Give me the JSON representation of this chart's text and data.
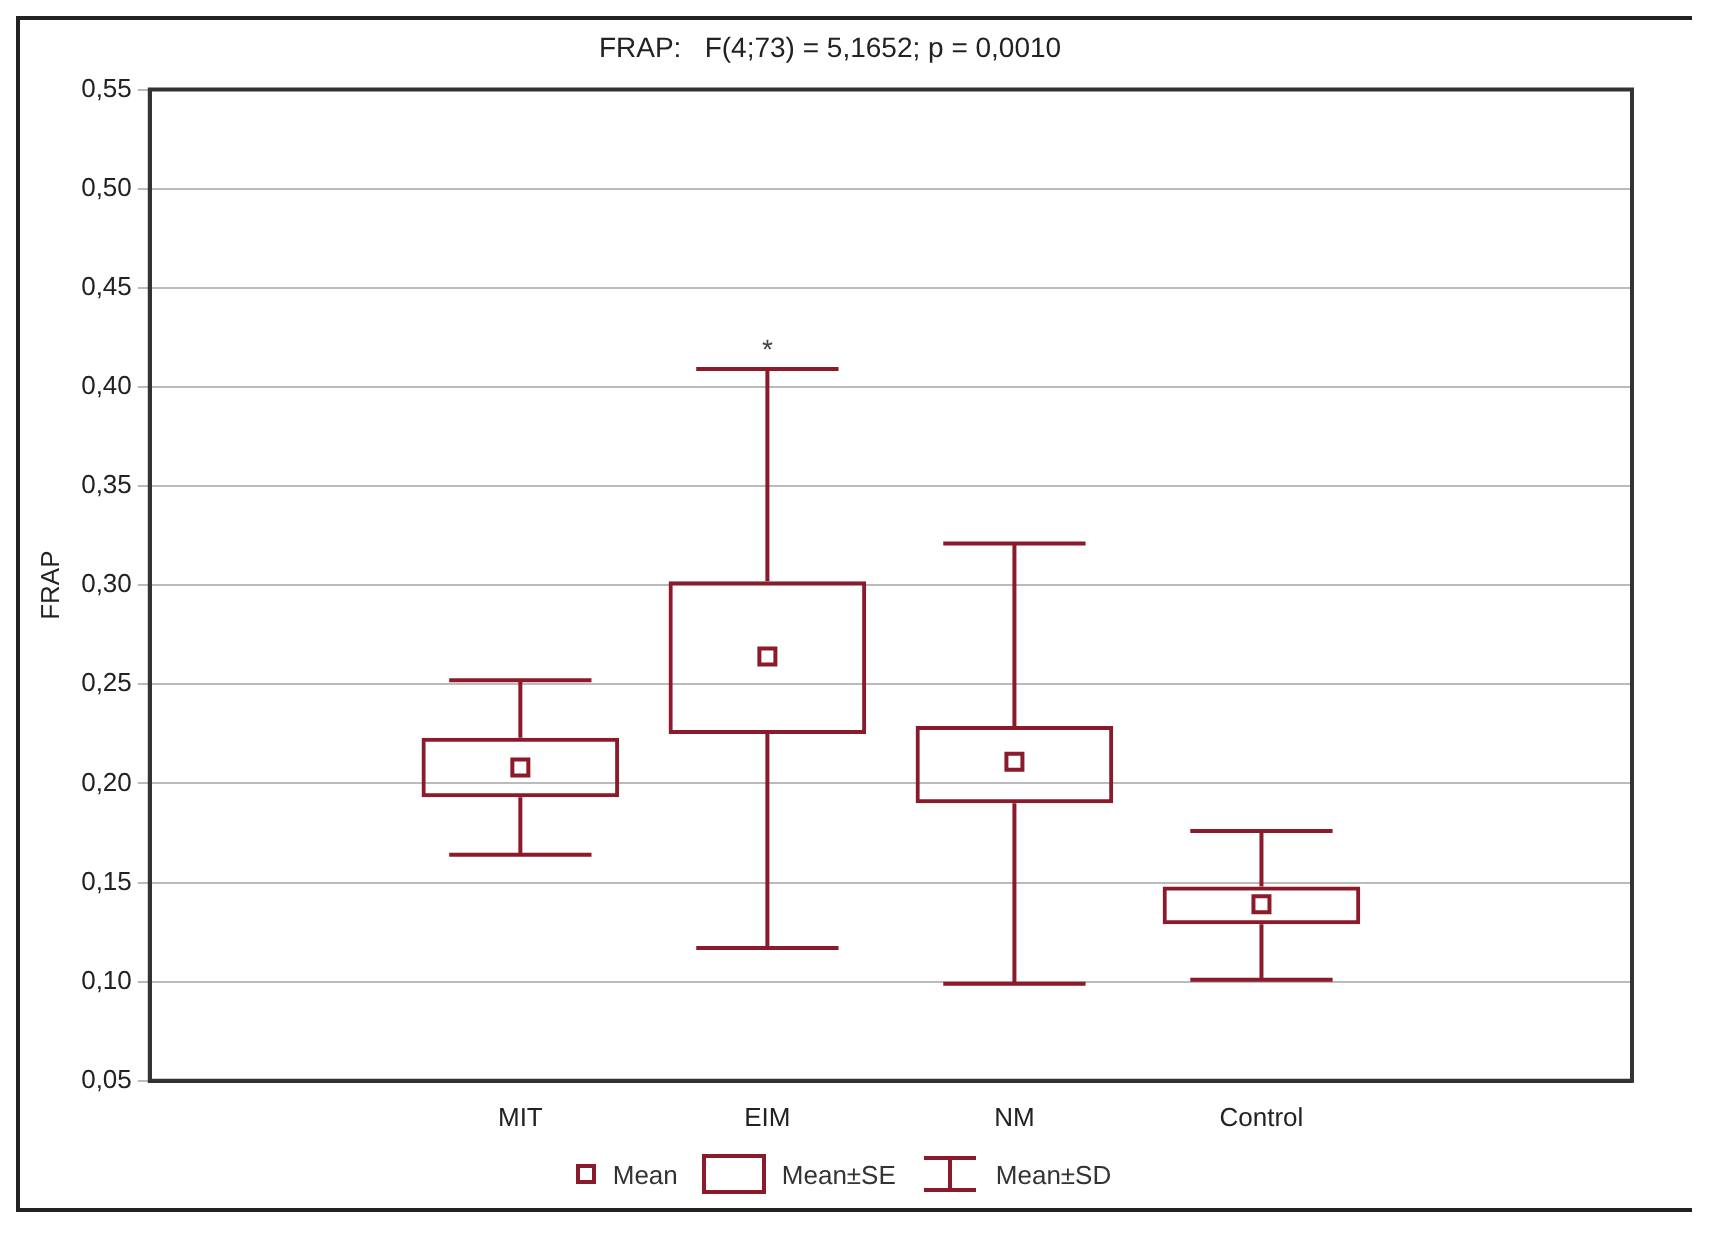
{
  "chart_data": {
    "type": "box",
    "title": "FRAP:   F(4;73) = 5,1652; p = 0,0010",
    "ylabel": "FRAP",
    "categories": [
      null,
      "MIT",
      "EIM",
      "NM",
      "Control",
      null
    ],
    "color": "#8b1a2b",
    "boxes": [
      null,
      {
        "low": 0.164,
        "q1": 0.193,
        "median": 0.208,
        "q3": 0.223,
        "high": 0.252
      },
      {
        "low": 0.117,
        "q1": 0.225,
        "median": 0.264,
        "q3": 0.302,
        "high": 0.409
      },
      {
        "low": 0.099,
        "q1": 0.19,
        "median": 0.211,
        "q3": 0.229,
        "high": 0.321
      },
      {
        "low": 0.101,
        "q1": 0.129,
        "median": 0.139,
        "q3": 0.148,
        "high": 0.176
      },
      null
    ],
    "ylim": [
      0.05,
      0.55
    ],
    "yticks": [
      {
        "value": 0.05,
        "label": "0,05"
      },
      {
        "value": 0.1,
        "label": "0,10"
      },
      {
        "value": 0.15,
        "label": "0,15"
      },
      {
        "value": 0.2,
        "label": "0,20"
      },
      {
        "value": 0.25,
        "label": "0,25"
      },
      {
        "value": 0.3,
        "label": "0,30"
      },
      {
        "value": 0.35,
        "label": "0,35"
      },
      {
        "value": 0.4,
        "label": "0,40"
      },
      {
        "value": 0.45,
        "label": "0,45"
      },
      {
        "value": 0.5,
        "label": "0,50"
      },
      {
        "value": 0.55,
        "label": "0,55"
      }
    ],
    "annotations": [
      "*",
      "Mean",
      "Mean±SE",
      "Mean±SD"
    ],
    "grid": "y"
  }
}
